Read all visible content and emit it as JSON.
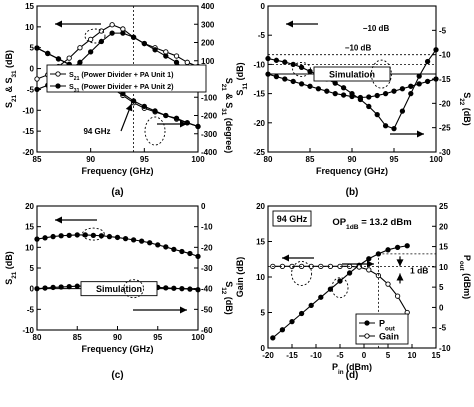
{
  "charts": [
    {
      "id": "a",
      "caption": "(a)",
      "xlabel": "Frequency (GHz)",
      "xlim": [
        85,
        100
      ],
      "xticks": [
        85,
        90,
        95,
        100
      ],
      "ylabel_left": "S21 & S31 (dB)",
      "ylabel_left_parts": {
        "s1": "S",
        "sub1": "21",
        "mid": " & S",
        "sub2": "31",
        "end": " (dB)"
      },
      "ylim_left": [
        -20,
        15
      ],
      "yticks_left": [
        -20,
        -15,
        -10,
        -5,
        0,
        5,
        10,
        15
      ],
      "ylabel_right": "S21 & S31 (degree)",
      "ylabel_right_parts": {
        "s1": "S",
        "sub1": "21",
        "mid": " & S",
        "sub2": "31",
        "end": " (degree)"
      },
      "ylim_right": [
        -400,
        400
      ],
      "yticks_right": [
        -400,
        -300,
        -200,
        -100,
        0,
        100,
        200,
        300,
        400
      ],
      "legend": [
        {
          "pre": "S",
          "sub": "21",
          "post": " (Power Divider + PA Unit 1)",
          "marker": "open"
        },
        {
          "pre": "S",
          "sub": "31",
          "post": " (Power Divider + PA Unit 2)",
          "marker": "filled"
        }
      ],
      "annotation": "94 GHz",
      "vline_x": 94,
      "series": [
        {
          "marker": "open",
          "axis": "left",
          "x": [
            85,
            86,
            87,
            88,
            89,
            90,
            91,
            92,
            93,
            94,
            95,
            96,
            97,
            98,
            99,
            100
          ],
          "y": [
            -2.5,
            -1.5,
            0.5,
            2.5,
            5,
            7,
            9,
            10.5,
            9.5,
            7.5,
            6,
            5,
            4,
            3,
            1.5,
            0.5
          ]
        },
        {
          "marker": "filled",
          "axis": "left",
          "x": [
            85,
            86,
            87,
            88,
            89,
            90,
            91,
            92,
            93,
            94,
            95,
            96,
            97,
            98,
            99,
            100
          ],
          "y": [
            -5,
            -4,
            -2.5,
            -0.5,
            1.5,
            4,
            6.5,
            8.5,
            8.5,
            7.5,
            6,
            4.5,
            3,
            1.5,
            -1,
            -2.5
          ]
        },
        {
          "marker": "open",
          "axis": "right",
          "x": [
            85,
            86,
            87,
            88,
            89,
            90,
            91,
            92,
            93,
            94,
            95,
            96,
            97,
            98,
            99,
            100
          ],
          "y": [
            170,
            140,
            110,
            80,
            50,
            20,
            -10,
            -50,
            -90,
            -130,
            -160,
            -180,
            -200,
            -220,
            -240,
            -260
          ]
        },
        {
          "marker": "filled",
          "axis": "right",
          "x": [
            85,
            86,
            87,
            88,
            89,
            90,
            91,
            92,
            93,
            94,
            95,
            96,
            97,
            98,
            99,
            100
          ],
          "y": [
            170,
            140,
            110,
            80,
            50,
            20,
            -10,
            -40,
            -80,
            -120,
            -150,
            -175,
            -200,
            -215,
            -240,
            -260
          ]
        }
      ]
    },
    {
      "id": "b",
      "caption": "(b)",
      "xlabel": "Frequency (GHz)",
      "xlim": [
        80,
        100
      ],
      "xticks": [
        80,
        85,
        90,
        95,
        100
      ],
      "ylabel_left": "S11 (dB)",
      "ylabel_left_parts": {
        "s1": "S",
        "sub1": "11",
        "end": " (dB)"
      },
      "ylim_left": [
        -25,
        0
      ],
      "yticks_left": [
        -25,
        -20,
        -15,
        -10,
        -5,
        0
      ],
      "ylabel_right": "S22 (dB)",
      "ylabel_right_parts": {
        "s1": "S",
        "sub1": "22",
        "end": " (dB)"
      },
      "ylim_right": [
        -30,
        0
      ],
      "yticks_right": [
        -30,
        -25,
        -20,
        -15,
        -10,
        -5
      ],
      "label_box": "Simulation",
      "annotation_top": "−10 dB",
      "annotation_bottom": "−10 dB",
      "series": [
        {
          "marker": "filled",
          "axis": "left",
          "x": [
            80,
            81,
            82,
            83,
            84,
            85,
            86,
            87,
            88,
            89,
            90,
            91,
            92,
            93,
            94,
            95,
            96,
            97,
            98,
            99,
            100
          ],
          "y": [
            -9,
            -9.3,
            -9.6,
            -10,
            -10.5,
            -11.2,
            -11.8,
            -12.5,
            -13.2,
            -14,
            -15,
            -16,
            -17.2,
            -18.6,
            -20.5,
            -21,
            -18,
            -15,
            -12,
            -9.5,
            -7.5
          ]
        },
        {
          "marker": "filled",
          "axis": "right",
          "x": [
            80,
            81,
            82,
            83,
            84,
            85,
            86,
            87,
            88,
            89,
            90,
            91,
            92,
            93,
            94,
            95,
            96,
            97,
            98,
            99,
            100
          ],
          "y": [
            -14,
            -14.5,
            -15,
            -15.5,
            -16,
            -16.5,
            -17,
            -17.5,
            -18,
            -18.3,
            -18.6,
            -18.8,
            -18.7,
            -18.4,
            -18,
            -17.5,
            -17,
            -16.5,
            -16,
            -15.5,
            -15
          ]
        }
      ]
    },
    {
      "id": "c",
      "caption": "(c)",
      "xlabel": "Frequency (GHz)",
      "xlim": [
        80,
        100
      ],
      "xticks": [
        80,
        85,
        90,
        95,
        100
      ],
      "ylabel_left": "S21 (dB)",
      "ylabel_left_parts": {
        "s1": "S",
        "sub1": "21",
        "end": " (dB)"
      },
      "ylim_left": [
        -10,
        20
      ],
      "yticks_left": [
        -10,
        -5,
        0,
        5,
        10,
        15,
        20
      ],
      "ylabel_right": "S12 (dB)",
      "ylabel_right_parts": {
        "s1": "S",
        "sub1": "12",
        "end": " (dB)"
      },
      "ylim_right": [
        -60,
        0
      ],
      "yticks_right": [
        -60,
        -50,
        -40,
        -30,
        -20,
        -10,
        0
      ],
      "label_box": "Simulation",
      "series": [
        {
          "marker": "filled",
          "axis": "left",
          "x": [
            80,
            81,
            82,
            83,
            84,
            85,
            86,
            87,
            88,
            89,
            90,
            91,
            92,
            93,
            94,
            95,
            96,
            97,
            98,
            99,
            100
          ],
          "y": [
            12,
            12.3,
            12.6,
            12.8,
            12.9,
            13,
            13,
            12.9,
            12.8,
            12.6,
            12.4,
            12.1,
            11.8,
            11.5,
            11.1,
            10.6,
            10.1,
            9.5,
            9,
            8.5,
            7.8
          ]
        },
        {
          "marker": "filled",
          "axis": "right",
          "x": [
            80,
            81,
            82,
            83,
            84,
            85,
            86,
            87,
            88,
            89,
            90,
            91,
            92,
            93,
            94,
            95,
            96,
            97,
            98,
            99,
            100
          ],
          "y": [
            -40,
            -39.7,
            -39.4,
            -39.2,
            -39,
            -38.8,
            -38.7,
            -38.6,
            -38.5,
            -38.5,
            -38.6,
            -38.7,
            -38.8,
            -39,
            -39.2,
            -39.4,
            -39.6,
            -39.8,
            -40,
            -40.2,
            -40.5
          ]
        }
      ]
    },
    {
      "id": "d",
      "caption": "(d)",
      "xlabel_parts": {
        "s1": "P",
        "sub1": "in",
        "end": " (dBm)"
      },
      "xlabel": "Pin (dBm)",
      "xlim": [
        -20,
        15
      ],
      "xticks": [
        -20,
        -15,
        -10,
        -5,
        0,
        5,
        10,
        15
      ],
      "ylabel_left": "Gain (dB)",
      "ylim_left": [
        0,
        20
      ],
      "yticks_left": [
        0,
        5,
        10,
        15,
        20
      ],
      "ylabel_right_parts": {
        "s1": "P",
        "sub1": "out",
        "end": " (dBm)"
      },
      "ylabel_right": "Pout (dBm)",
      "ylim_right": [
        -10,
        25
      ],
      "yticks_right": [
        -10,
        -5,
        0,
        5,
        10,
        15,
        20,
        25
      ],
      "freq_box": "94 GHz",
      "op_label_parts": {
        "s1": "OP",
        "sub1": "1dB",
        "end": " = 13.2 dBm"
      },
      "op_label": "OP1dB = 13.2 dBm",
      "compression": "1 dB",
      "legend": [
        {
          "pre": "P",
          "sub": "out",
          "post": "",
          "marker": "filled"
        },
        {
          "pre": "Gain",
          "sub": "",
          "post": "",
          "marker": "open"
        }
      ],
      "series": [
        {
          "name": "Pout",
          "marker": "filled",
          "axis": "right",
          "x": [
            -19,
            -17,
            -15,
            -13,
            -11,
            -9,
            -7,
            -5,
            -3,
            -1,
            1,
            3,
            5,
            7,
            9
          ],
          "y": [
            -7.5,
            -5.5,
            -3.5,
            -1.5,
            0.5,
            2.5,
            4.5,
            6.5,
            8.5,
            10.4,
            12,
            13.2,
            14.2,
            14.8,
            15.2
          ]
        },
        {
          "name": "Gain",
          "marker": "open",
          "axis": "left",
          "x": [
            -19,
            -17,
            -15,
            -13,
            -11,
            -9,
            -7,
            -5,
            -3,
            -1,
            1,
            3,
            5,
            7,
            9
          ],
          "y": [
            11.5,
            11.5,
            11.5,
            11.5,
            11.5,
            11.5,
            11.5,
            11.5,
            11.5,
            11.4,
            11,
            10.2,
            9,
            7.3,
            5
          ]
        }
      ]
    }
  ]
}
